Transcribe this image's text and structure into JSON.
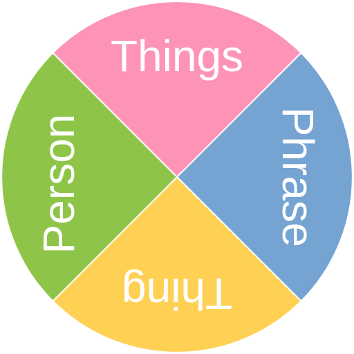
{
  "wheel": {
    "segments": [
      {
        "id": "top",
        "label": "Things",
        "color": "#fd93b7"
      },
      {
        "id": "right",
        "label": "Phrase",
        "color": "#75a3d2"
      },
      {
        "id": "bottom",
        "label": "Thing",
        "color": "#fed155"
      },
      {
        "id": "left",
        "label": "Person",
        "color": "#8ec549"
      }
    ]
  }
}
